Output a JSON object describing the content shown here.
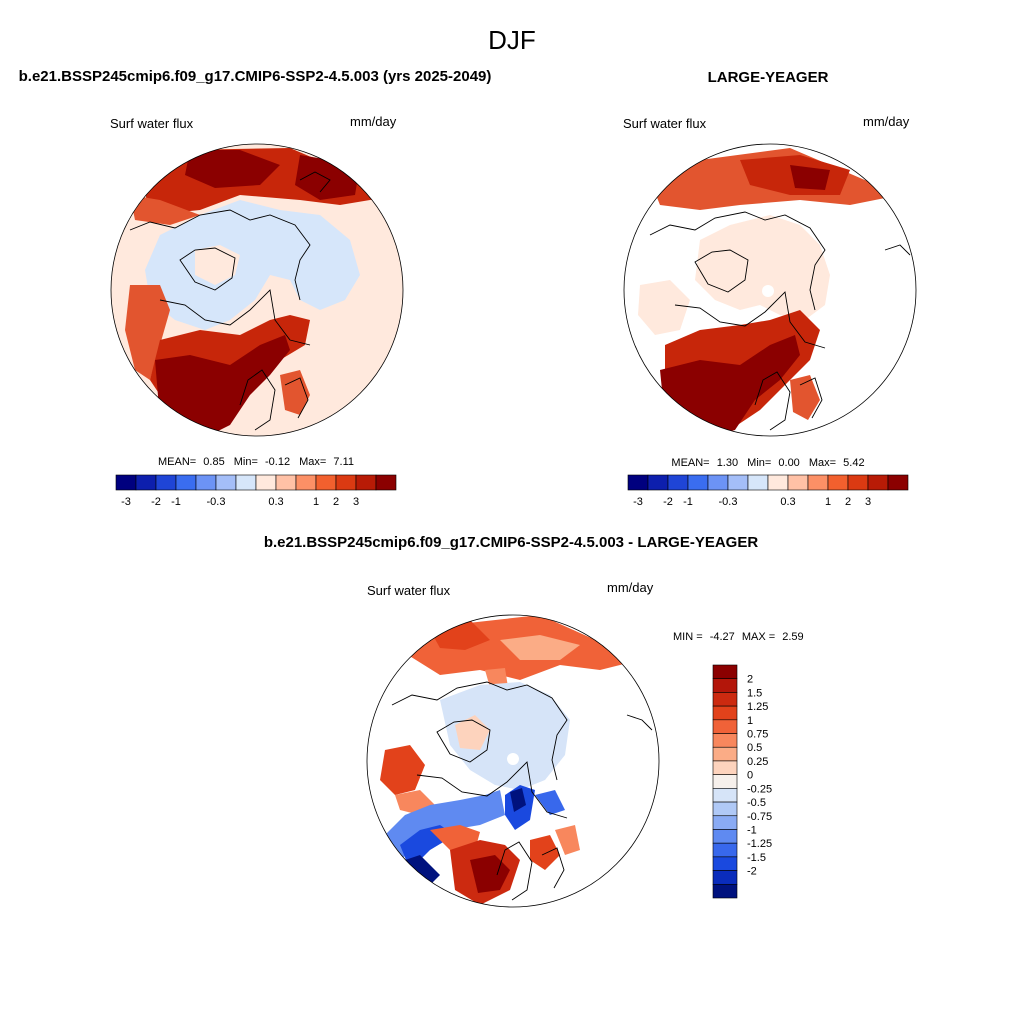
{
  "figure": {
    "suptitle": "DJF"
  },
  "palette": {
    "land": "#ffffff",
    "coast": "#000000",
    "land_a": "#ffe9dd",
    "ocean_a_low": "#d6e6fa",
    "red_dark": "#8b0000",
    "red_mid": "#c7260a",
    "red_light": "#e2552f",
    "blue_dark": "#1c3fd0"
  },
  "chart_data": [
    {
      "type": "heatmap",
      "projection": "north-polar-stereographic",
      "title": "b.e21.BSSP245cmip6.f09_g17.CMIP6-SSP2-4.5.003 (yrs 2025-2049)",
      "left_label": "Surf water flux",
      "right_label": "mm/day",
      "stats": {
        "mean_label": "MEAN=",
        "mean": "0.85",
        "min_label": "Min=",
        "min": "-0.12",
        "max_label": "Max=",
        "max": "7.11"
      },
      "colorbar": {
        "orientation": "horizontal",
        "levels": [
          -3,
          -2,
          -1,
          -0.3,
          0.3,
          1,
          2,
          3
        ],
        "tick_labels": [
          "-3",
          "-2",
          "-1",
          "-0.3",
          "0.3",
          "1",
          "2",
          "3"
        ],
        "colors": [
          "#00007f",
          "#0d1fad",
          "#1f45d6",
          "#3a6df0",
          "#6c93f5",
          "#a4bef8",
          "#d6e6fa",
          "#ffe9dd",
          "#ffc1a6",
          "#fc9066",
          "#f2602e",
          "#db3a12",
          "#b81b06",
          "#8b0000"
        ]
      }
    },
    {
      "type": "heatmap",
      "projection": "north-polar-stereographic",
      "title": "LARGE-YEAGER",
      "left_label": "Surf water flux",
      "right_label": "mm/day",
      "stats": {
        "mean_label": "MEAN=",
        "mean": "1.30",
        "min_label": "Min=",
        "min": "0.00",
        "max_label": "Max=",
        "max": "5.42"
      },
      "colorbar": {
        "orientation": "horizontal",
        "levels": [
          -3,
          -2,
          -1,
          -0.3,
          0.3,
          1,
          2,
          3
        ],
        "tick_labels": [
          "-3",
          "-2",
          "-1",
          "-0.3",
          "0.3",
          "1",
          "2",
          "3"
        ],
        "colors": [
          "#00007f",
          "#0d1fad",
          "#1f45d6",
          "#3a6df0",
          "#6c93f5",
          "#a4bef8",
          "#d6e6fa",
          "#ffe9dd",
          "#ffc1a6",
          "#fc9066",
          "#f2602e",
          "#db3a12",
          "#b81b06",
          "#8b0000"
        ]
      }
    },
    {
      "type": "heatmap",
      "projection": "north-polar-stereographic",
      "title": "b.e21.BSSP245cmip6.f09_g17.CMIP6-SSP2-4.5.003 - LARGE-YEAGER",
      "left_label": "Surf water flux",
      "right_label": "mm/day",
      "stats": {
        "min_label": "MIN =",
        "min": "-4.27",
        "max_label": "MAX =",
        "max": "2.59"
      },
      "colorbar": {
        "orientation": "vertical",
        "levels": [
          2,
          1.5,
          1.25,
          1,
          0.75,
          0.5,
          0.25,
          0,
          -0.25,
          -0.5,
          -0.75,
          -1,
          -1.25,
          -1.5,
          -2
        ],
        "tick_labels": [
          "2",
          "1.5",
          "1.25",
          "1",
          "0.75",
          "0.5",
          "0.25",
          "0",
          "-0.25",
          "-0.5",
          "-0.75",
          "-1",
          "-1.25",
          "-1.5",
          "-2"
        ],
        "colors": [
          "#8b0000",
          "#b3160a",
          "#cc2a10",
          "#e2421b",
          "#f06238",
          "#f8875d",
          "#fbac86",
          "#fdd3bd",
          "#f6f0ec",
          "#d6e4f8",
          "#b0c9f6",
          "#8aabf4",
          "#5f8af1",
          "#3868ec",
          "#1a49df",
          "#0a2cbc",
          "#00127e"
        ]
      }
    }
  ]
}
